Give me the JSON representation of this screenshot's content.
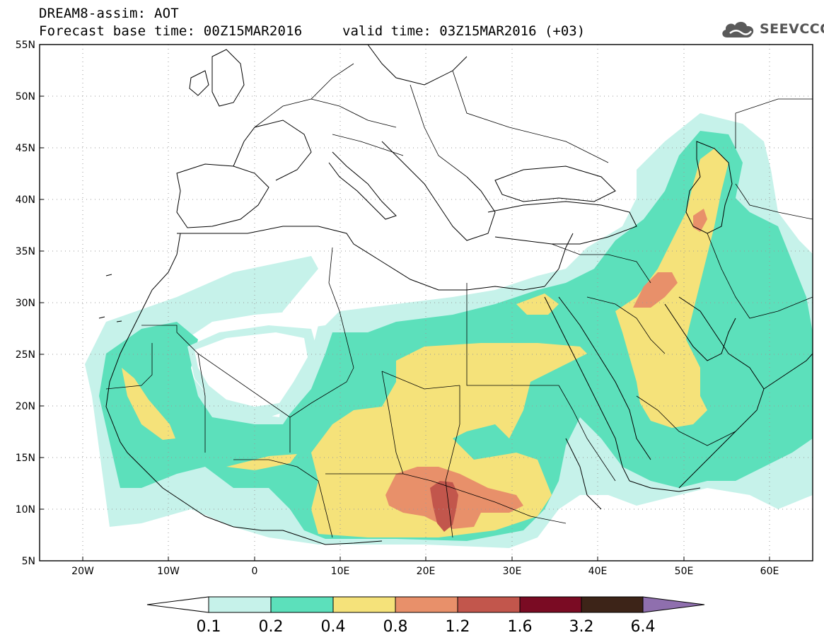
{
  "header": {
    "line1": "DREAM8-assim: AOT",
    "line2": "Forecast base time: 00Z15MAR2016",
    "valid": "valid time: 03Z15MAR2016 (+03)"
  },
  "logo": {
    "text": "SEEVCCC",
    "icon": "cloud-icon"
  },
  "map": {
    "lat_labels": [
      "55N",
      "50N",
      "45N",
      "40N",
      "35N",
      "30N",
      "25N",
      "20N",
      "15N",
      "10N",
      "5N"
    ],
    "lon_labels": [
      "20W",
      "10W",
      "0",
      "10E",
      "20E",
      "30E",
      "40E",
      "50E",
      "60E"
    ]
  },
  "colorbar": {
    "labels": [
      "0.1",
      "0.2",
      "0.4",
      "0.8",
      "1.2",
      "1.6",
      "3.2",
      "6.4"
    ],
    "colors": [
      "#ffffff",
      "#c6f2ea",
      "#5ce0bb",
      "#f5e27a",
      "#e8906a",
      "#c2564c",
      "#7a0b23",
      "#3d2418",
      "#8f6fae"
    ]
  }
}
